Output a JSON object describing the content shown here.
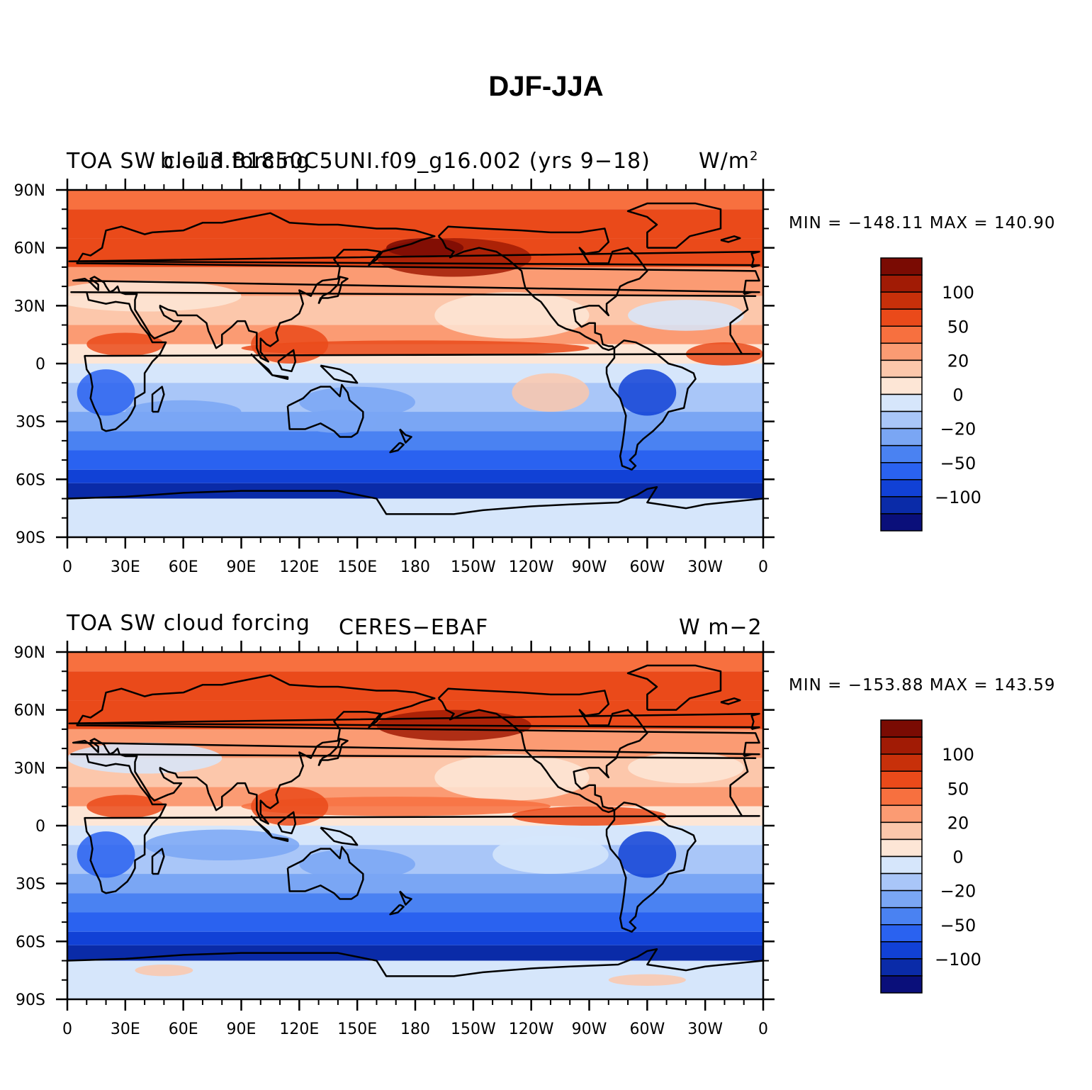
{
  "title": "DJF-JJA",
  "lat_labels": [
    "90N",
    "60N",
    "30N",
    "0",
    "30S",
    "60S",
    "90S"
  ],
  "lon_labels": [
    "0",
    "30E",
    "60E",
    "90E",
    "120E",
    "150E",
    "180",
    "150W",
    "120W",
    "90W",
    "60W",
    "30W",
    "0"
  ],
  "colorbar": {
    "levels": [
      "100",
      "50",
      "20",
      "0",
      "−20",
      "−50",
      "−100"
    ],
    "colors": [
      "#0a0f7a",
      "#0a2ba8",
      "#1141d6",
      "#2a62f0",
      "#4a82f2",
      "#7aa6f4",
      "#a9c6f8",
      "#d6e6fb",
      "#fde6d6",
      "#fcc7ab",
      "#fb9b73",
      "#f7703f",
      "#ea4a1a",
      "#c8300a",
      "#a11b05",
      "#7a0b03"
    ]
  },
  "panels": [
    {
      "id": "model",
      "variable": "TOA SW cloud forcing",
      "case": "b.e13.B1850C5UNI.f09_g16.002 (yrs 9−18)",
      "units": "W/m",
      "units_sup": "2",
      "min_max": "MIN = −148.11  MAX = 140.90"
    },
    {
      "id": "obs",
      "variable": "TOA SW cloud forcing",
      "case": "CERES−EBAF",
      "units": "W m−2",
      "units_sup": "",
      "min_max": "MIN = −153.88  MAX = 143.59"
    }
  ]
}
